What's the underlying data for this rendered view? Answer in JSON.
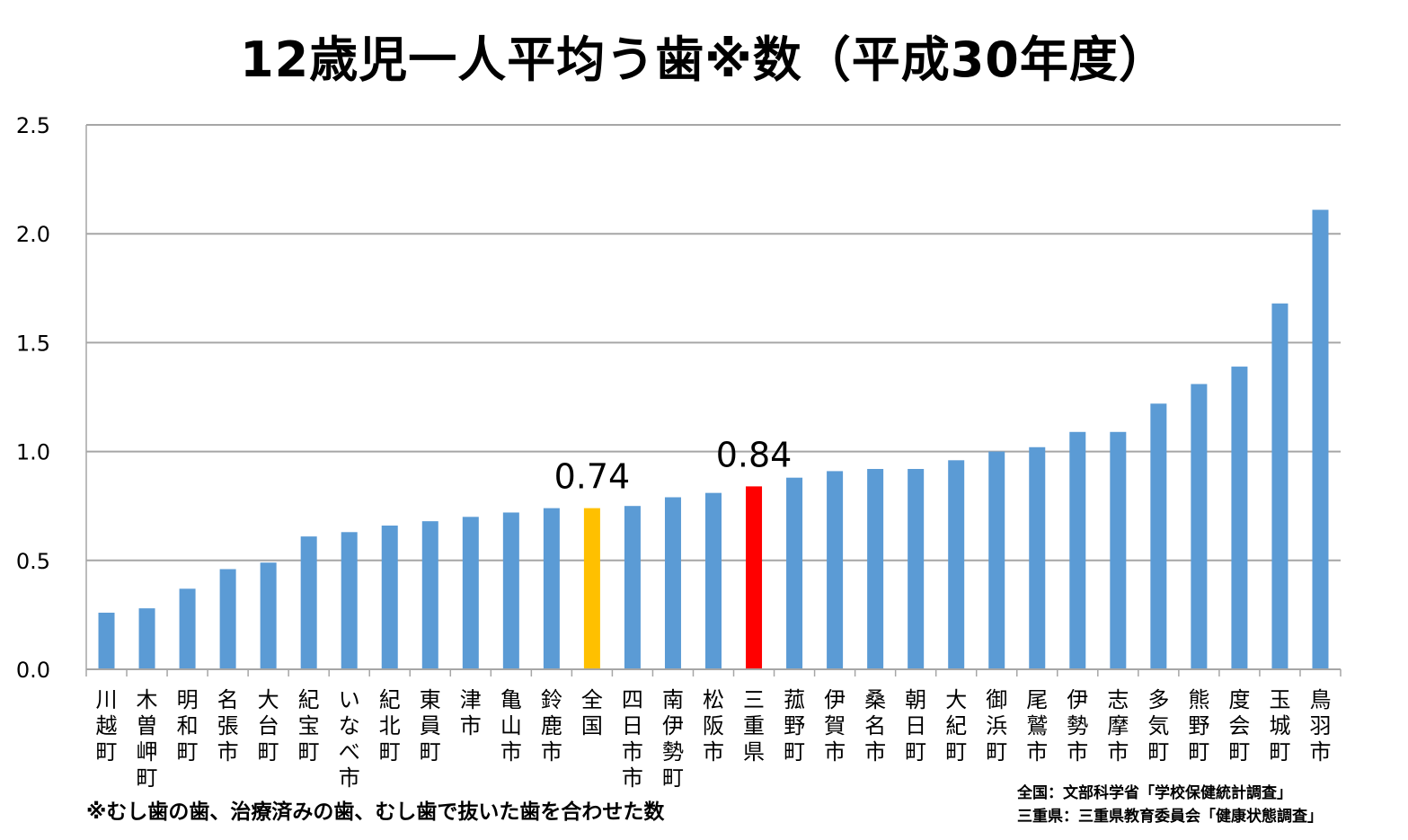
{
  "chart_data": {
    "type": "bar",
    "title": "12歳児一人平均う歯※数（平成30年度）",
    "xlabel": "",
    "ylabel": "",
    "ylim": [
      0,
      2.5
    ],
    "yticks": [
      "0.0",
      "0.5",
      "1.0",
      "1.5",
      "2.0",
      "2.5"
    ],
    "grid": true,
    "categories": [
      "川越町",
      "木曽岬町",
      "明和町",
      "名張市",
      "大台町",
      "紀宝町",
      "いなべ市",
      "紀北町",
      "東員町",
      "津市",
      "亀山市",
      "鈴鹿市",
      "全国",
      "四日市市",
      "南伊勢町",
      "松阪市",
      "三重県",
      "菰野町",
      "伊賀市",
      "桑名市",
      "朝日町",
      "大紀町",
      "御浜町",
      "尾鷲市",
      "伊勢市",
      "志摩市",
      "多気町",
      "熊野町",
      "度会町",
      "玉城町",
      "鳥羽市"
    ],
    "values": [
      0.26,
      0.28,
      0.37,
      0.46,
      0.49,
      0.61,
      0.63,
      0.66,
      0.68,
      0.7,
      0.72,
      0.74,
      0.74,
      0.75,
      0.79,
      0.81,
      0.84,
      0.88,
      0.91,
      0.92,
      0.92,
      0.96,
      1.0,
      1.02,
      1.09,
      1.09,
      1.22,
      1.31,
      1.39,
      1.68,
      2.11
    ],
    "bar_colors": {
      "default": "#5b9bd5",
      "全国": "#ffc000",
      "三重県": "#ff0000"
    },
    "data_labels": [
      {
        "category": "全国",
        "text": "0.74"
      },
      {
        "category": "三重県",
        "text": "0.84"
      }
    ]
  },
  "footnote": "※むし歯の歯、治療済みの歯、むし歯で抜いた歯を合わせた数",
  "sources": [
    "全国：文部科学省「学校保健統計調査」",
    "三重県：三重県教育委員会「健康状態調査」"
  ]
}
